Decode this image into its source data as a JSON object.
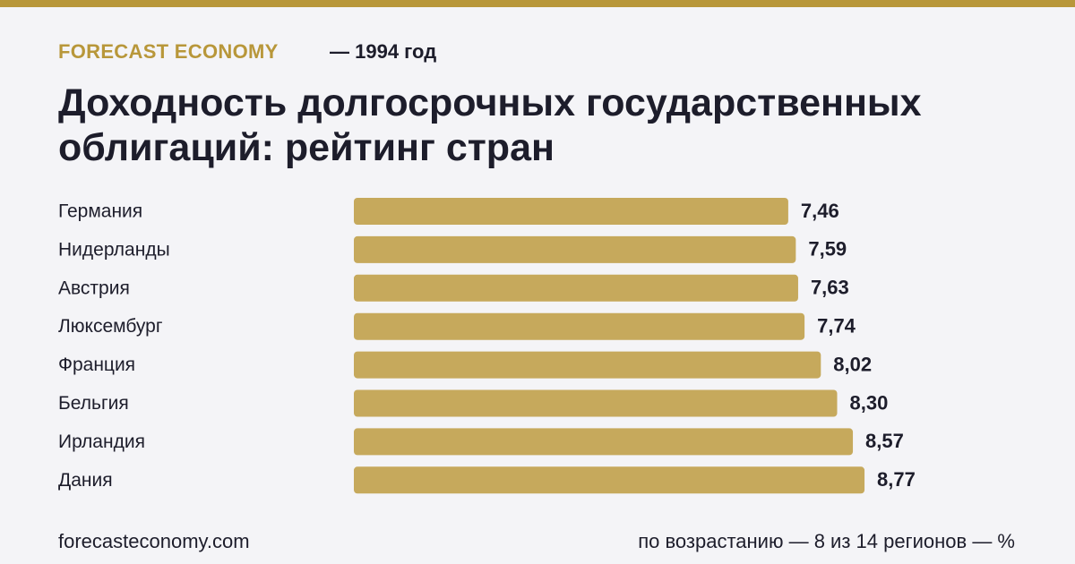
{
  "header": {
    "brand": "FORECAST ECONOMY",
    "subtitle": "— 1994 год"
  },
  "chart_data": {
    "type": "barh",
    "title": "Доходность долгосрочных государственных облигаций: рейтинг стран",
    "categories": [
      "Германия",
      "Нидерланды",
      "Австрия",
      "Люксембург",
      "Франция",
      "Бельгия",
      "Ирландия",
      "Дания"
    ],
    "values": [
      7.46,
      7.59,
      7.63,
      7.74,
      8.02,
      8.3,
      8.57,
      8.77
    ],
    "value_labels": [
      "7,46",
      "7,59",
      "7,63",
      "7,74",
      "8,02",
      "8,30",
      "8,57",
      "8,77"
    ],
    "color": "#c6a95c"
  },
  "footer": {
    "site": "forecasteconomy.com",
    "note": "по возрастанию — 8 из 14 регионов — %"
  }
}
